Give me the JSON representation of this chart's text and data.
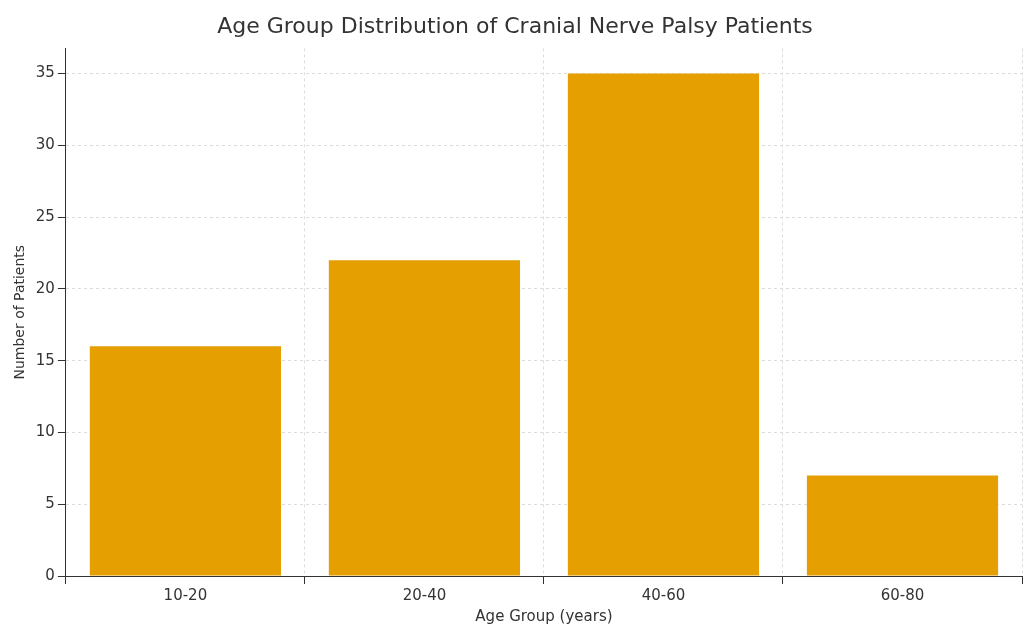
{
  "chart_data": {
    "type": "bar",
    "title": "Age Group Distribution of Cranial Nerve Palsy Patients",
    "xlabel": "Age Group (years)",
    "ylabel": "Number of Patients",
    "categories": [
      "10-20",
      "20-40",
      "40-60",
      "60-80"
    ],
    "values": [
      16,
      22,
      35,
      7
    ],
    "color": "#e69f00",
    "ylim": [
      0,
      36.75
    ],
    "yticks": [
      0,
      5,
      10,
      15,
      20,
      25,
      30,
      35
    ],
    "grid": true
  }
}
